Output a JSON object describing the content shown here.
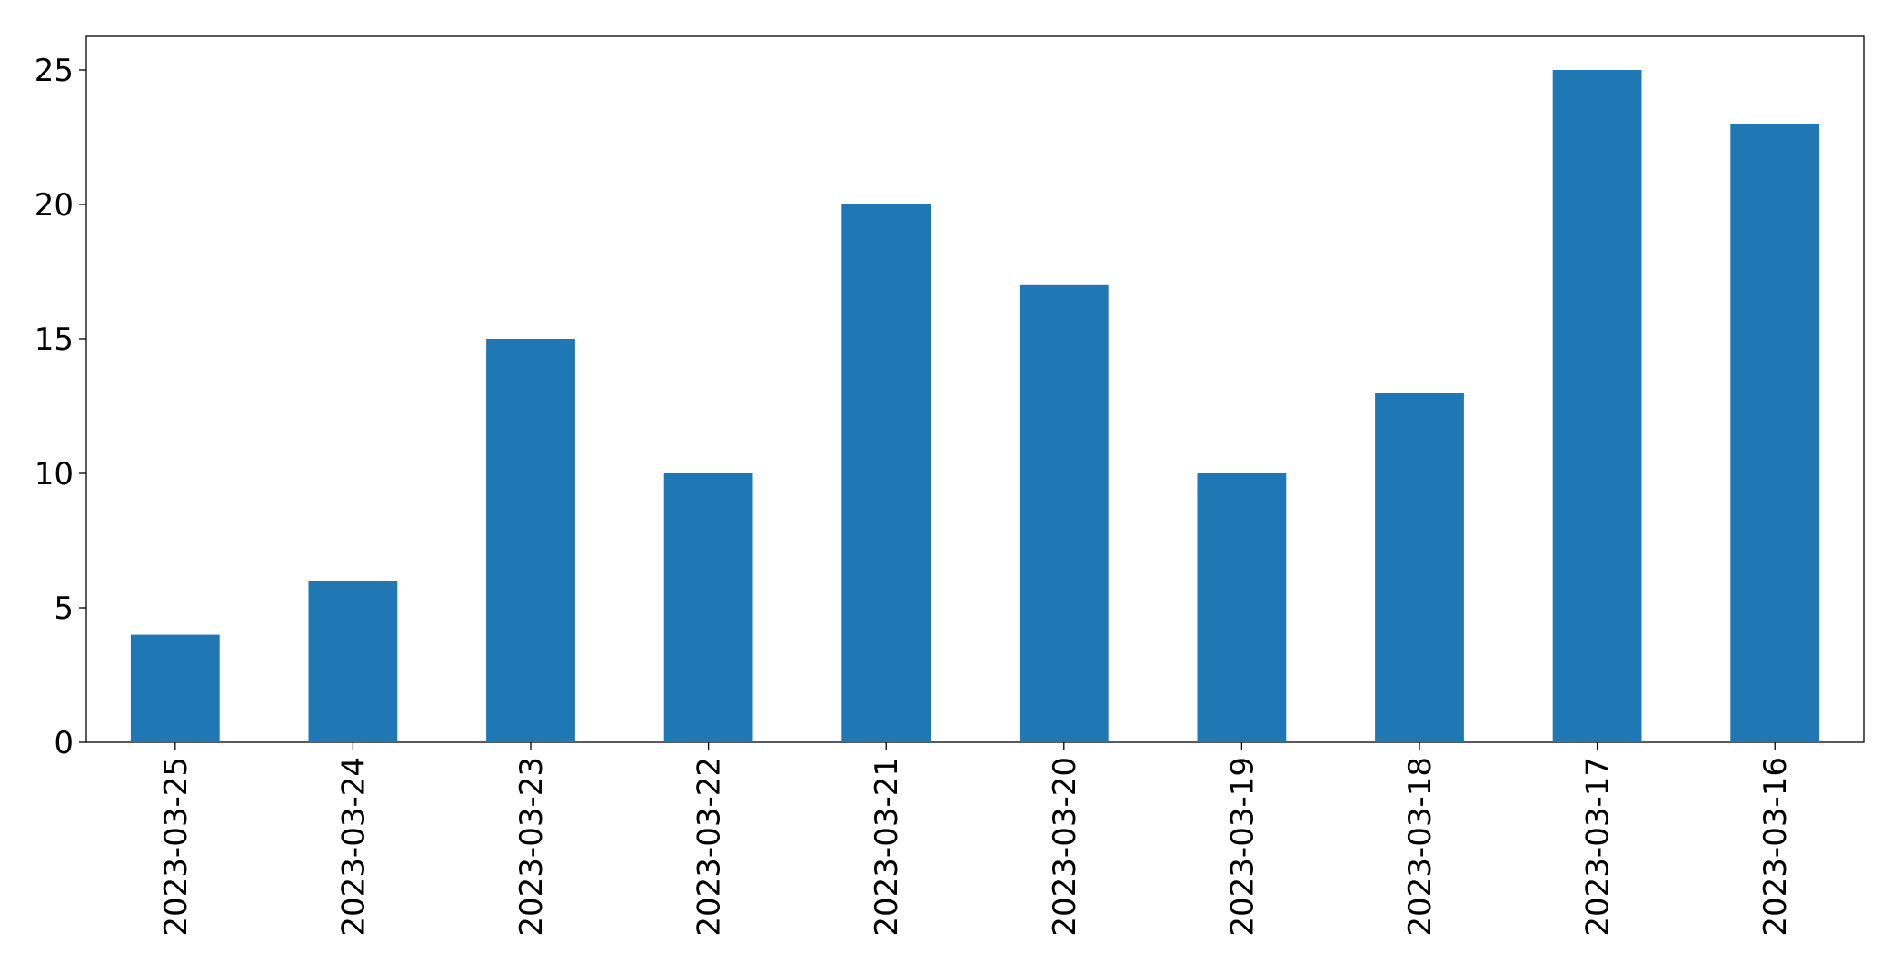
{
  "chart_data": {
    "type": "bar",
    "categories": [
      "2023-03-25",
      "2023-03-24",
      "2023-03-23",
      "2023-03-22",
      "2023-03-21",
      "2023-03-20",
      "2023-03-19",
      "2023-03-18",
      "2023-03-17",
      "2023-03-16"
    ],
    "values": [
      4,
      6,
      15,
      10,
      20,
      17,
      10,
      13,
      25,
      23
    ],
    "color": "#1f77b4",
    "ylim": [
      0,
      26.25
    ],
    "yticks": [
      0,
      5,
      10,
      15,
      20,
      25
    ],
    "grid": false
  }
}
